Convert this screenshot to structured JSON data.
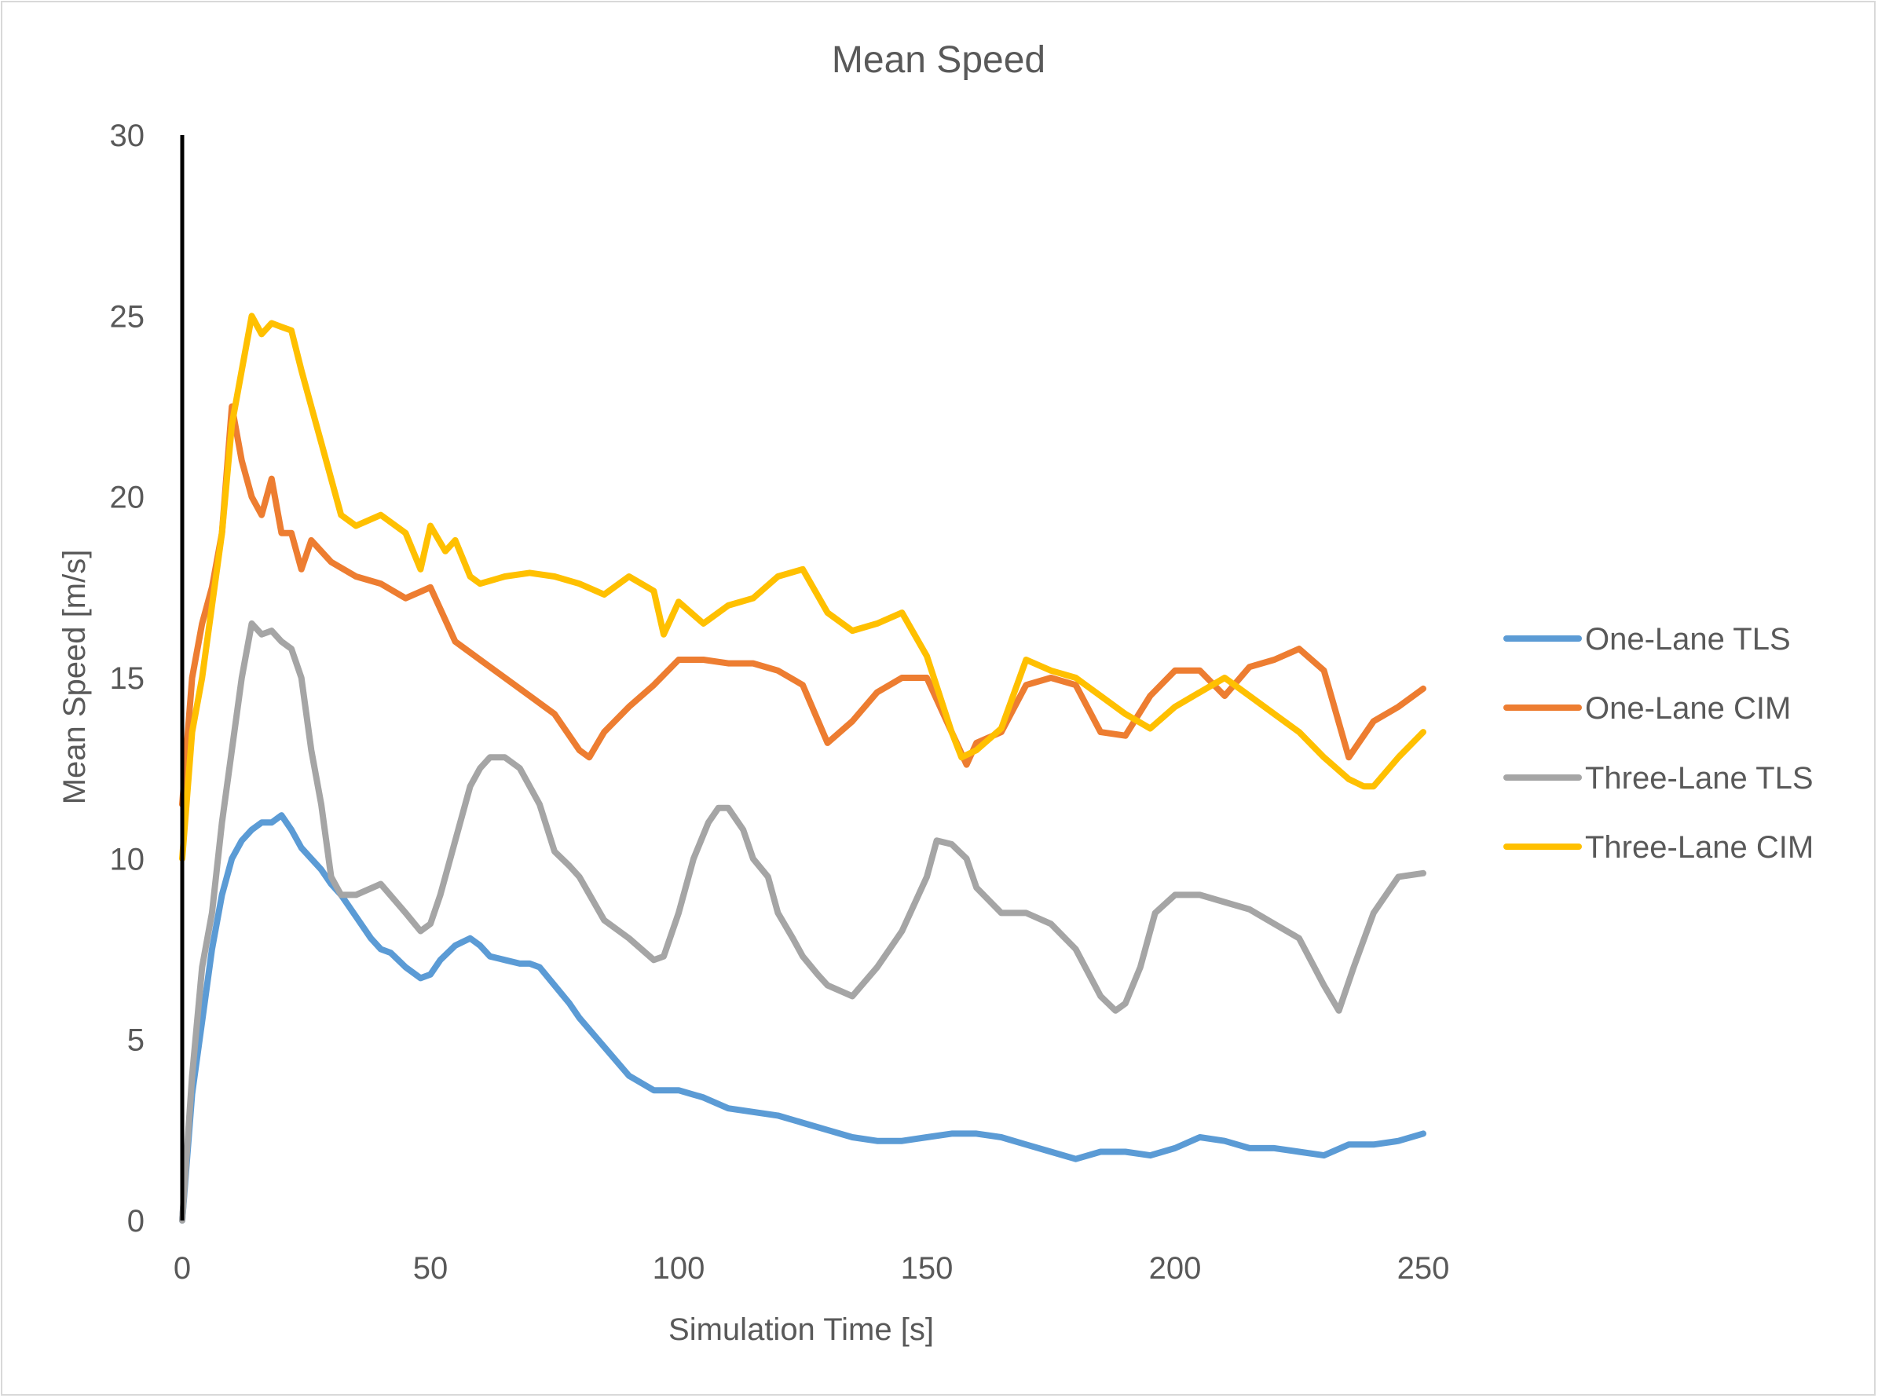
{
  "chart_data": {
    "type": "line",
    "title": "Mean Speed",
    "xlabel": "Simulation Time [s]",
    "ylabel": "Mean Speed [m/s]",
    "xlim": [
      0,
      250
    ],
    "ylim": [
      0,
      30
    ],
    "x_ticks": [
      "0",
      "50",
      "100",
      "150",
      "200",
      "250"
    ],
    "y_ticks": [
      "0",
      "5",
      "10",
      "15",
      "20",
      "25",
      "30"
    ],
    "grid": false,
    "legend": "right",
    "series": [
      {
        "name": "One-Lane TLS",
        "color": "#5b9bd5",
        "x": [
          0,
          2,
          4,
          6,
          8,
          10,
          12,
          14,
          16,
          18,
          20,
          22,
          24,
          26,
          28,
          30,
          32,
          35,
          38,
          40,
          42,
          45,
          48,
          50,
          52,
          55,
          58,
          60,
          62,
          65,
          68,
          70,
          72,
          75,
          78,
          80,
          85,
          90,
          95,
          100,
          105,
          110,
          115,
          120,
          125,
          130,
          135,
          140,
          145,
          150,
          155,
          160,
          165,
          170,
          175,
          180,
          185,
          190,
          195,
          200,
          205,
          210,
          215,
          220,
          225,
          230,
          235,
          240,
          245,
          250
        ],
        "y": [
          0,
          3.5,
          5.5,
          7.5,
          9,
          10,
          10.5,
          10.8,
          11,
          11,
          11.2,
          10.8,
          10.3,
          10,
          9.7,
          9.3,
          9,
          8.4,
          7.8,
          7.5,
          7.4,
          7,
          6.7,
          6.8,
          7.2,
          7.6,
          7.8,
          7.6,
          7.3,
          7.2,
          7.1,
          7.1,
          7,
          6.5,
          6,
          5.6,
          4.8,
          4,
          3.6,
          3.6,
          3.4,
          3.1,
          3,
          2.9,
          2.7,
          2.5,
          2.3,
          2.2,
          2.2,
          2.3,
          2.4,
          2.4,
          2.3,
          2.1,
          1.9,
          1.7,
          1.9,
          1.9,
          1.8,
          2.0,
          2.3,
          2.2,
          2.0,
          2.0,
          1.9,
          1.8,
          2.1,
          2.1,
          2.2,
          2.4
        ]
      },
      {
        "name": "One-Lane CIM",
        "color": "#ed7d31",
        "x": [
          0,
          2,
          4,
          6,
          8,
          10,
          12,
          14,
          16,
          18,
          20,
          22,
          24,
          26,
          28,
          30,
          35,
          40,
          45,
          50,
          55,
          60,
          65,
          70,
          75,
          80,
          82,
          85,
          90,
          95,
          100,
          105,
          110,
          115,
          120,
          125,
          130,
          135,
          140,
          145,
          150,
          155,
          158,
          160,
          165,
          170,
          175,
          180,
          185,
          190,
          195,
          200,
          205,
          210,
          215,
          220,
          225,
          230,
          235,
          240,
          245,
          250
        ],
        "y": [
          11.5,
          15,
          16.5,
          17.5,
          19,
          22.5,
          21,
          20,
          19.5,
          20.5,
          19,
          19,
          18,
          18.8,
          18.5,
          18.2,
          17.8,
          17.6,
          17.2,
          17.5,
          16,
          15.5,
          15,
          14.5,
          14,
          13,
          12.8,
          13.5,
          14.2,
          14.8,
          15.5,
          15.5,
          15.4,
          15.4,
          15.2,
          14.8,
          13.2,
          13.8,
          14.6,
          15,
          15,
          13.5,
          12.6,
          13.2,
          13.5,
          14.8,
          15,
          14.8,
          13.5,
          13.4,
          14.5,
          15.2,
          15.2,
          14.5,
          15.3,
          15.5,
          15.8,
          15.2,
          12.8,
          13.8,
          14.2,
          14.7
        ]
      },
      {
        "name": "Three-Lane TLS",
        "color": "#a5a5a5",
        "x": [
          0,
          2,
          4,
          6,
          8,
          10,
          12,
          14,
          16,
          18,
          20,
          22,
          24,
          26,
          28,
          30,
          32,
          35,
          40,
          45,
          48,
          50,
          52,
          55,
          58,
          60,
          62,
          65,
          68,
          70,
          72,
          75,
          78,
          80,
          85,
          90,
          95,
          97,
          100,
          103,
          106,
          108,
          110,
          113,
          115,
          118,
          120,
          123,
          125,
          128,
          130,
          135,
          140,
          145,
          150,
          152,
          155,
          158,
          160,
          165,
          170,
          175,
          180,
          185,
          188,
          190,
          193,
          196,
          200,
          205,
          210,
          215,
          220,
          225,
          230,
          233,
          236,
          240,
          245,
          250
        ],
        "y": [
          0,
          4,
          7,
          8.5,
          11,
          13,
          15,
          16.5,
          16.2,
          16.3,
          16,
          15.8,
          15,
          13,
          11.5,
          9.5,
          9,
          9,
          9.3,
          8.5,
          8,
          8.2,
          9,
          10.5,
          12,
          12.5,
          12.8,
          12.8,
          12.5,
          12,
          11.5,
          10.2,
          9.8,
          9.5,
          8.3,
          7.8,
          7.2,
          7.3,
          8.5,
          10,
          11,
          11.4,
          11.4,
          10.8,
          10,
          9.5,
          8.5,
          7.8,
          7.3,
          6.8,
          6.5,
          6.2,
          7,
          8,
          9.5,
          10.5,
          10.4,
          10,
          9.2,
          8.5,
          8.5,
          8.2,
          7.5,
          6.2,
          5.8,
          6,
          7,
          8.5,
          9,
          9,
          8.8,
          8.6,
          8.2,
          7.8,
          6.5,
          5.8,
          7,
          8.5,
          9.5,
          9.6
        ]
      },
      {
        "name": "Three-Lane CIM",
        "color": "#ffc000",
        "x": [
          0,
          2,
          4,
          6,
          8,
          10,
          12,
          14,
          16,
          18,
          20,
          22,
          24,
          26,
          28,
          30,
          32,
          35,
          40,
          45,
          48,
          50,
          53,
          55,
          58,
          60,
          65,
          70,
          75,
          80,
          85,
          90,
          95,
          97,
          100,
          105,
          110,
          115,
          120,
          125,
          130,
          135,
          140,
          145,
          150,
          155,
          157,
          160,
          165,
          170,
          175,
          180,
          185,
          190,
          195,
          200,
          205,
          210,
          215,
          220,
          225,
          230,
          235,
          238,
          240,
          245,
          250
        ],
        "y": [
          10,
          13.5,
          15,
          17,
          19,
          22,
          23.5,
          25,
          24.5,
          24.8,
          24.7,
          24.6,
          23.5,
          22.5,
          21.5,
          20.5,
          19.5,
          19.2,
          19.5,
          19,
          18,
          19.2,
          18.5,
          18.8,
          17.8,
          17.6,
          17.8,
          17.9,
          17.8,
          17.6,
          17.3,
          17.8,
          17.4,
          16.2,
          17.1,
          16.5,
          17,
          17.2,
          17.8,
          18,
          16.8,
          16.3,
          16.5,
          16.8,
          15.6,
          13.5,
          12.8,
          13,
          13.6,
          15.5,
          15.2,
          15,
          14.5,
          14,
          13.6,
          14.2,
          14.6,
          15,
          14.5,
          14,
          13.5,
          12.8,
          12.2,
          12,
          12,
          12.8,
          13.5
        ]
      }
    ]
  }
}
